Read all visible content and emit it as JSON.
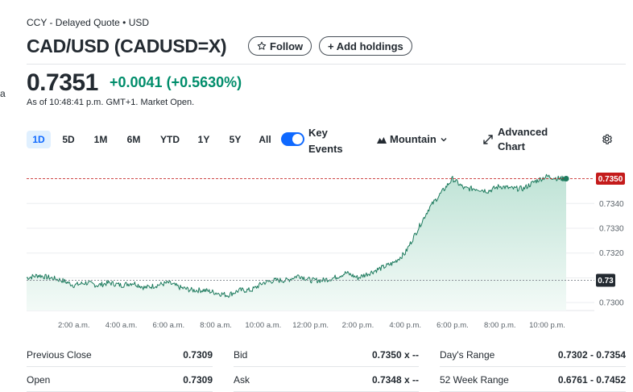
{
  "header": {
    "exchange": "CCY - Delayed Quote • USD",
    "edge_text": "a",
    "title": "CAD/USD (CADUSD=X)",
    "follow_label": "Follow",
    "add_holdings_label": "+ Add holdings"
  },
  "quote": {
    "price": "0.7351",
    "change": "+0.0041 (+0.5630%)",
    "as_of": "As of 10:48:41 p.m. GMT+1. Market Open.",
    "change_color": "#008d6b"
  },
  "toolbar": {
    "ranges": [
      "1D",
      "5D",
      "1M",
      "6M",
      "YTD",
      "1Y",
      "5Y",
      "All"
    ],
    "active_range": "1D",
    "key_events_line1": "Key",
    "key_events_line2": "Events",
    "key_events_on": true,
    "chart_type": "Mountain",
    "advanced_line1": "Advanced",
    "advanced_line2": "Chart",
    "icons": [
      "toggle-icon",
      "mountain-icon",
      "chevron-down-icon",
      "expand-icon",
      "gear-icon"
    ]
  },
  "chart_data": {
    "type": "area",
    "y_ticks": [
      "0.7340",
      "0.7330",
      "0.7320",
      "0.7300"
    ],
    "ylim": [
      0.72968,
      0.73544
    ],
    "x_ticks": [
      "2:00 a.m.",
      "4:00 a.m.",
      "6:00 a.m.",
      "8:00 a.m.",
      "10:00 a.m.",
      "12:00 p.m.",
      "2:00 p.m.",
      "4:00 p.m.",
      "6:00 p.m.",
      "8:00 p.m.",
      "10:00 p.m."
    ],
    "current_label": "0.7350",
    "previous_close_label": "0.73",
    "previous_close": 0.7309,
    "line_color": "#1e7b5e",
    "current_color": "#c41b1b",
    "x_hours": [
      0.0,
      0.5,
      1.0,
      1.5,
      2.0,
      2.5,
      3.0,
      3.5,
      4.0,
      4.5,
      5.0,
      5.5,
      6.0,
      6.5,
      7.0,
      7.5,
      8.0,
      8.5,
      9.0,
      9.5,
      10.0,
      10.5,
      11.0,
      11.5,
      12.0,
      12.5,
      13.0,
      13.5,
      14.0,
      14.5,
      15.0,
      15.5,
      16.0,
      16.5,
      17.0,
      17.5,
      18.0,
      18.5,
      19.0,
      19.5,
      20.0,
      20.5,
      21.0,
      21.5,
      22.0,
      22.5,
      22.8
    ],
    "values": [
      0.731,
      0.7311,
      0.731,
      0.7309,
      0.7307,
      0.7308,
      0.7307,
      0.7308,
      0.7307,
      0.7308,
      0.7306,
      0.7307,
      0.7308,
      0.7306,
      0.7305,
      0.7305,
      0.7304,
      0.7303,
      0.7305,
      0.7305,
      0.7308,
      0.7309,
      0.7309,
      0.7311,
      0.7309,
      0.7309,
      0.731,
      0.7312,
      0.731,
      0.7312,
      0.7314,
      0.7316,
      0.732,
      0.7329,
      0.7338,
      0.7344,
      0.735,
      0.7346,
      0.7346,
      0.7345,
      0.7347,
      0.7346,
      0.7346,
      0.7349,
      0.7351,
      0.735,
      0.735
    ]
  },
  "stats": {
    "col1": [
      {
        "label": "Previous Close",
        "value": "0.7309"
      },
      {
        "label": "Open",
        "value": "0.7309"
      }
    ],
    "col2": [
      {
        "label": "Bid",
        "value": "0.7350 x --"
      },
      {
        "label": "Ask",
        "value": "0.7348 x --"
      }
    ],
    "col3": [
      {
        "label": "Day's Range",
        "value": "0.7302 - 0.7354"
      },
      {
        "label": "52 Week Range",
        "value": "0.6761 - 0.7452"
      }
    ]
  }
}
